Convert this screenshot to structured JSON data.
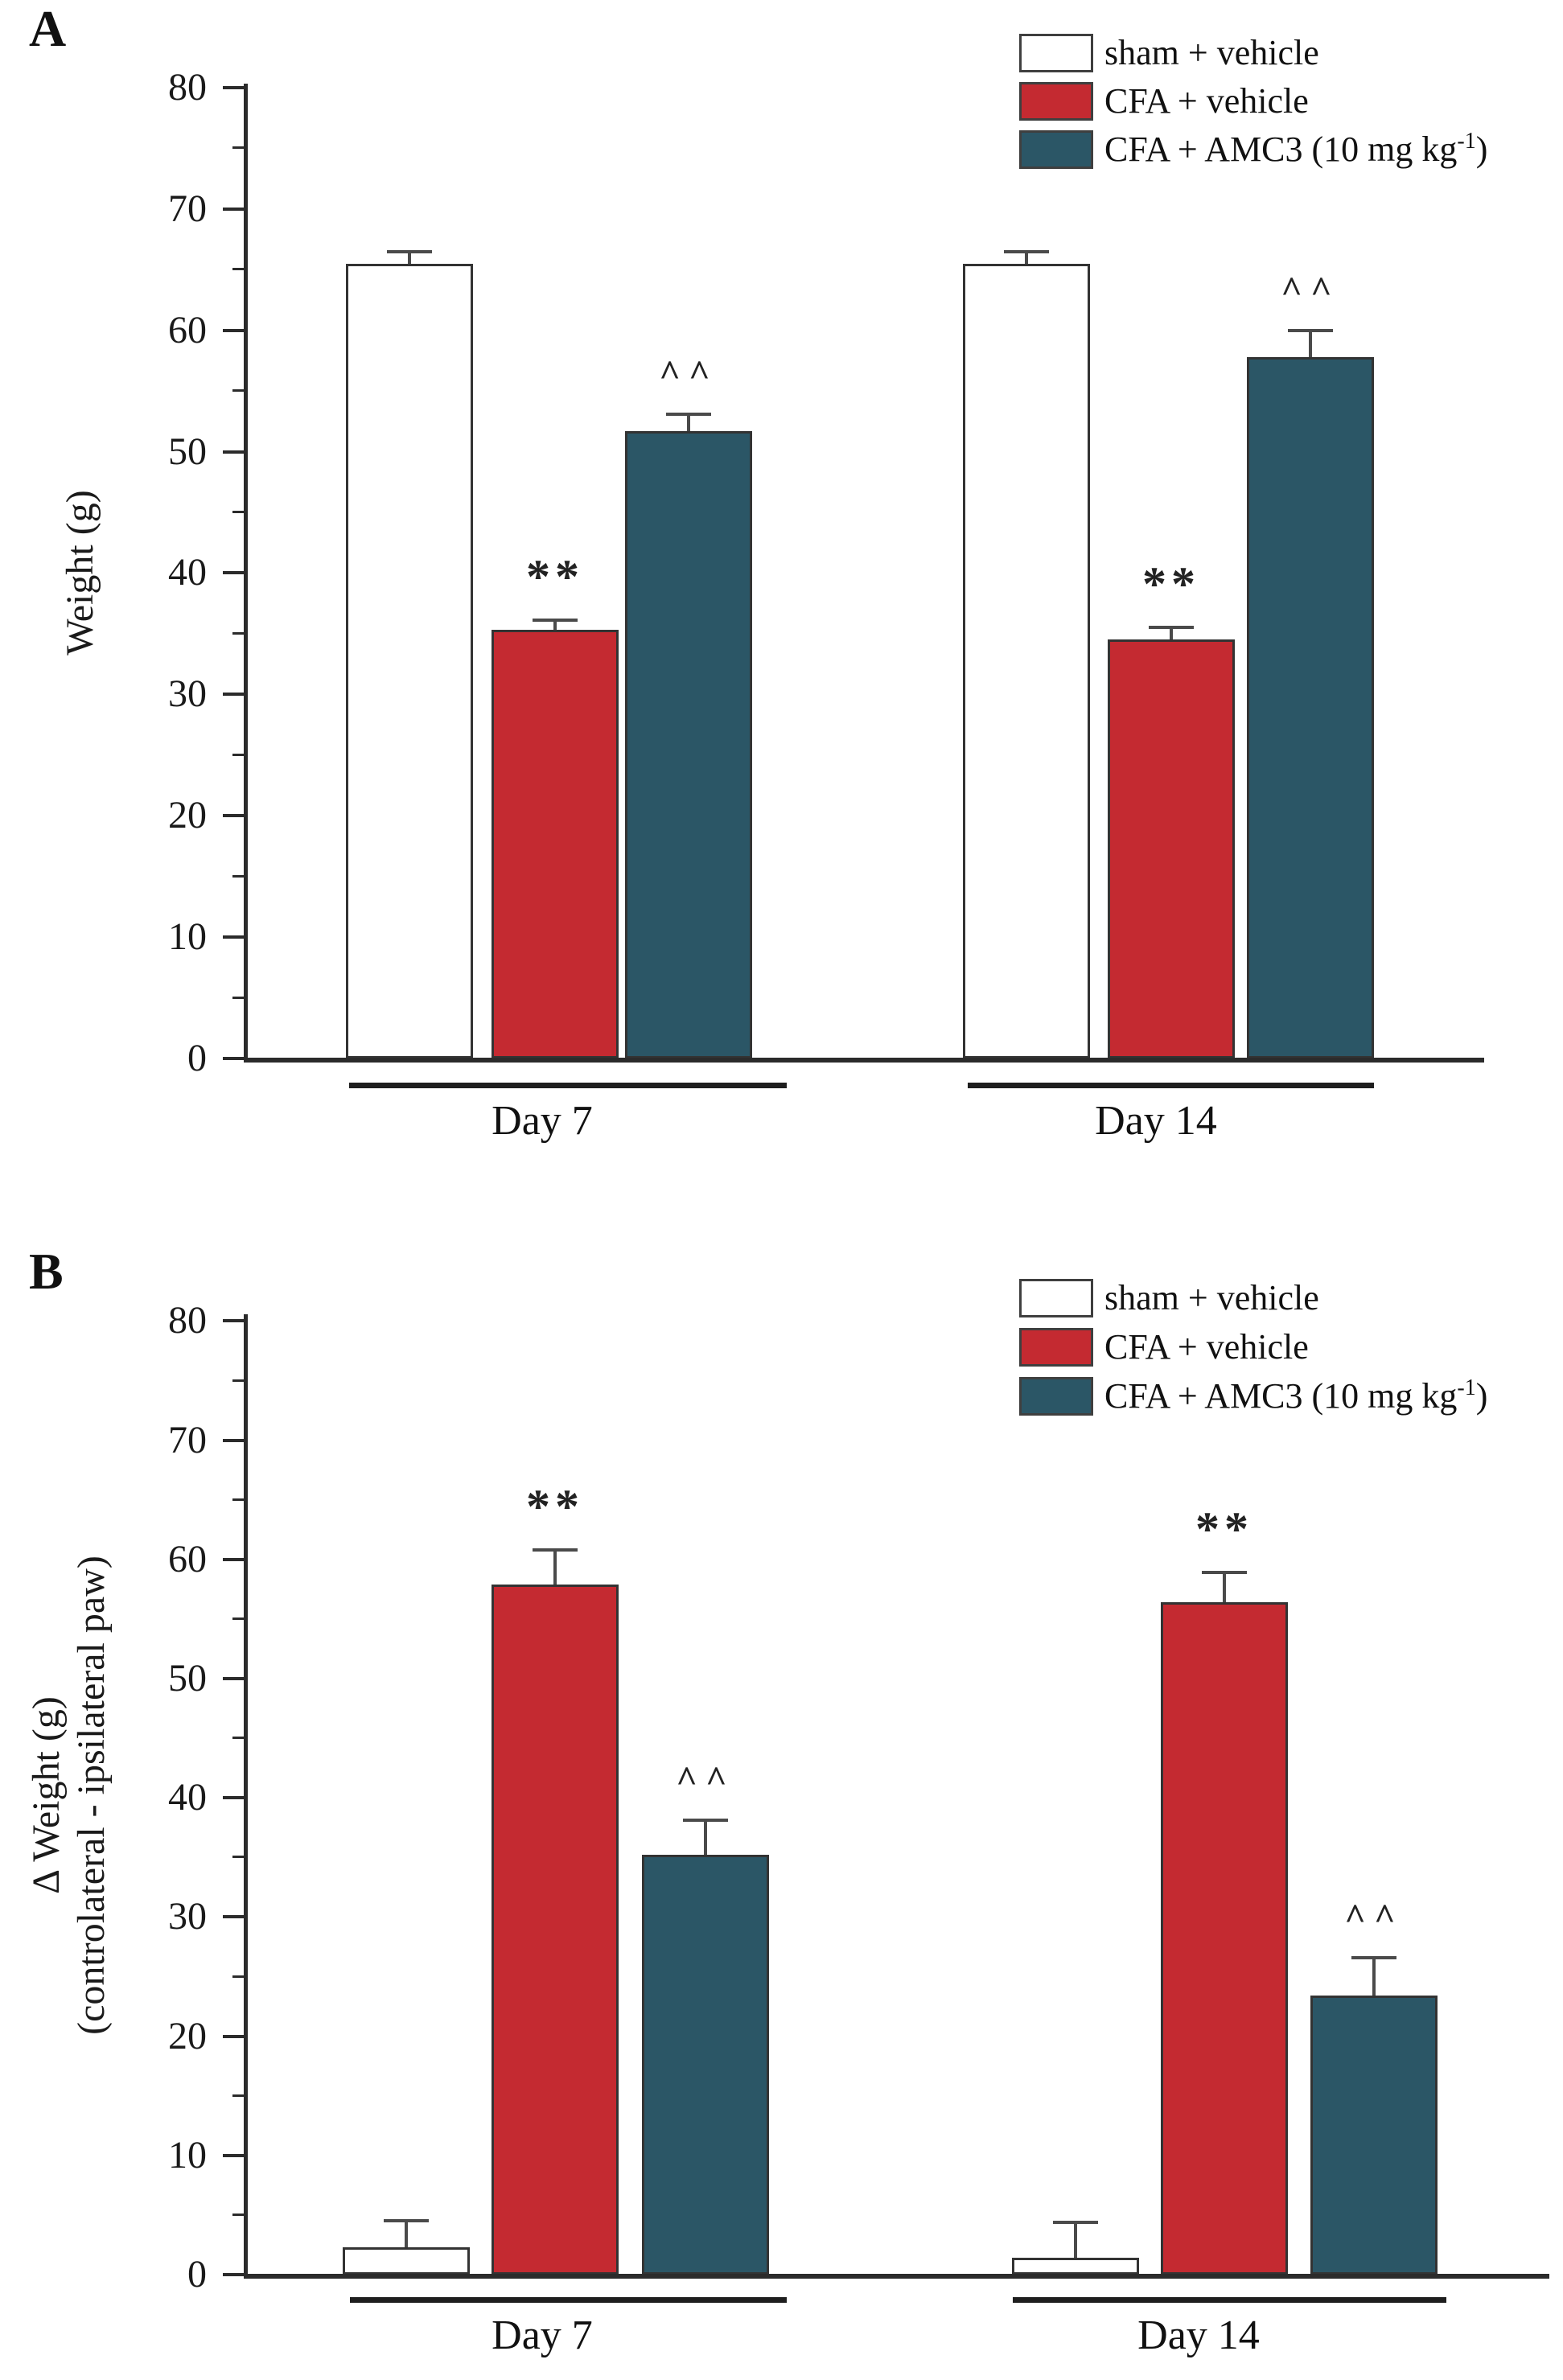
{
  "figure_background": "#ffffff",
  "colors": {
    "white_fill": "#ffffff",
    "red_fill": "#c42a31",
    "teal_fill": "#2b5666",
    "axis": "#2b2b2b",
    "bar_border": "#333333",
    "error_bar": "#4a4a4a",
    "text": "#1a1a1a",
    "legend_swatch_border": "#3f3f3f"
  },
  "panels": [
    {
      "label": "A"
    },
    {
      "label": "B"
    }
  ],
  "legend": {
    "items": [
      {
        "key": "sham",
        "fill": "white_fill",
        "label_base": "sham + vehicle",
        "label_sup": "",
        "label_end": ""
      },
      {
        "key": "cfa",
        "fill": "red_fill",
        "label_base": "CFA + vehicle",
        "label_sup": "",
        "label_end": ""
      },
      {
        "key": "amc3",
        "fill": "teal_fill",
        "label_base": "CFA + AMC3 (10 mg kg",
        "label_sup": "-1",
        "label_end": ")"
      }
    ]
  },
  "chart_data": [
    {
      "type": "bar",
      "panel": "A",
      "title": "",
      "xlabel": "",
      "ylabel": "Weight (g)",
      "ylabel_lines": [
        "Weight (g)"
      ],
      "categories": [
        "Day 7",
        "Day 14"
      ],
      "series": [
        {
          "name": "sham + vehicle",
          "fill": "white_fill",
          "values": [
            65.5,
            65.5
          ],
          "sem": [
            1.0,
            1.0
          ],
          "annotations": [
            "",
            ""
          ]
        },
        {
          "name": "CFA + vehicle",
          "fill": "red_fill",
          "values": [
            35.3,
            34.5
          ],
          "sem": [
            0.8,
            1.0
          ],
          "annotations": [
            "**",
            "**"
          ]
        },
        {
          "name": "CFA + AMC3 (10 mg kg-1)",
          "fill": "teal_fill",
          "values": [
            51.7,
            57.8
          ],
          "sem": [
            1.4,
            2.2
          ],
          "annotations": [
            "^^",
            "^^"
          ]
        }
      ],
      "ylim": [
        0,
        80
      ],
      "yticks": [
        0,
        10,
        20,
        30,
        40,
        50,
        60,
        70,
        80
      ],
      "ytick_step": 10,
      "yminor_step": 5,
      "grid": false,
      "legend_position": "top-right"
    },
    {
      "type": "bar",
      "panel": "B",
      "title": "",
      "xlabel": "",
      "ylabel": "Δ Weight (g) (controlateral - ipsilateral paw)",
      "ylabel_lines": [
        "Δ Weight (g)",
        "(controlateral - ipsilateral paw)"
      ],
      "categories": [
        "Day 7",
        "Day 14"
      ],
      "series": [
        {
          "name": "sham + vehicle",
          "fill": "white_fill",
          "values": [
            2.3,
            1.4
          ],
          "sem": [
            2.2,
            3.0
          ],
          "annotations": [
            "",
            ""
          ]
        },
        {
          "name": "CFA + vehicle",
          "fill": "red_fill",
          "values": [
            57.9,
            56.4
          ],
          "sem": [
            2.9,
            2.5
          ],
          "annotations": [
            "**",
            "**"
          ]
        },
        {
          "name": "CFA + AMC3 (10 mg kg-1)",
          "fill": "teal_fill",
          "values": [
            35.2,
            23.4
          ],
          "sem": [
            2.9,
            3.2
          ],
          "annotations": [
            "^^",
            "^^"
          ]
        }
      ],
      "ylim": [
        0,
        80
      ],
      "yticks": [
        0,
        10,
        20,
        30,
        40,
        50,
        60,
        70,
        80
      ],
      "ytick_step": 10,
      "yminor_step": 5,
      "grid": false,
      "legend_position": "top-right"
    }
  ]
}
